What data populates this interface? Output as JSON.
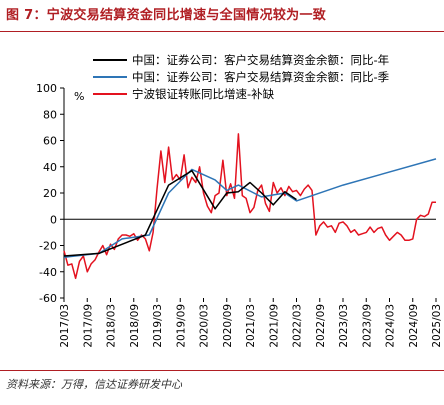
{
  "title": "图 7：宁波交易结算资金同比增速与全国情况较为一致",
  "source": "资料来源：万得，信达证券研发中心",
  "colors": {
    "accent": "#b01e23",
    "black_series": "#000000",
    "blue_series": "#2e75b6",
    "red_series": "#e3121f"
  },
  "chart_data": {
    "type": "line",
    "ylabel": "%",
    "ylim": [
      -60,
      100
    ],
    "yticks": [
      -60,
      -40,
      -20,
      0,
      20,
      40,
      60,
      80,
      100
    ],
    "xlim": [
      "2017/03",
      "2025/03"
    ],
    "xtick_labels": [
      "2017/03",
      "2017/09",
      "2018/03",
      "2018/09",
      "2019/03",
      "2019/09",
      "2020/03",
      "2020/09",
      "2021/03",
      "2021/09",
      "2022/03",
      "2022/09",
      "2023/03",
      "2023/09",
      "2024/03",
      "2024/09",
      "2025/03"
    ],
    "grid": false,
    "legend_position": "top",
    "series": [
      {
        "name": "中国：证券公司：客户交易结算资金余额：同比-年",
        "color": "#000000",
        "points": [
          [
            "2017/03",
            -28
          ],
          [
            "2017/12",
            -26
          ],
          [
            "2018/12",
            -12
          ],
          [
            "2019/06",
            26
          ],
          [
            "2019/12",
            37
          ],
          [
            "2020/06",
            8
          ],
          [
            "2020/09",
            20
          ],
          [
            "2020/12",
            21
          ],
          [
            "2021/03",
            28
          ],
          [
            "2021/06",
            20
          ],
          [
            "2021/09",
            11
          ],
          [
            "2021/12",
            21
          ],
          [
            "2022/03",
            15
          ]
        ]
      },
      {
        "name": "中国：证券公司：客户交易结算资金余额：同比-季",
        "color": "#2e75b6",
        "points": [
          [
            "2017/03",
            -29
          ],
          [
            "2017/12",
            -26
          ],
          [
            "2018/06",
            -15
          ],
          [
            "2019/01",
            -12
          ],
          [
            "2019/06",
            20
          ],
          [
            "2019/12",
            38
          ],
          [
            "2020/06",
            30
          ],
          [
            "2020/09",
            22
          ],
          [
            "2020/12",
            26
          ],
          [
            "2021/06",
            17
          ],
          [
            "2021/12",
            20
          ],
          [
            "2022/03",
            14
          ],
          [
            "2023/03",
            26
          ],
          [
            "2025/03",
            46
          ]
        ]
      },
      {
        "name": "宁波银证转账同比增速-补缺",
        "color": "#e3121f",
        "points": [
          [
            "2017/03",
            -24
          ],
          [
            "2017/04",
            -35
          ],
          [
            "2017/05",
            -34
          ],
          [
            "2017/06",
            -45
          ],
          [
            "2017/07",
            -32
          ],
          [
            "2017/08",
            -28
          ],
          [
            "2017/09",
            -40
          ],
          [
            "2017/10",
            -34
          ],
          [
            "2017/11",
            -31
          ],
          [
            "2017/12",
            -25
          ],
          [
            "2018/01",
            -20
          ],
          [
            "2018/02",
            -27
          ],
          [
            "2018/03",
            -19
          ],
          [
            "2018/04",
            -23
          ],
          [
            "2018/05",
            -15
          ],
          [
            "2018/06",
            -12
          ],
          [
            "2018/07",
            -12
          ],
          [
            "2018/08",
            -13
          ],
          [
            "2018/09",
            -11
          ],
          [
            "2018/10",
            -16
          ],
          [
            "2018/11",
            -12
          ],
          [
            "2018/12",
            -15
          ],
          [
            "2019/01",
            -24
          ],
          [
            "2019/02",
            -10
          ],
          [
            "2019/03",
            23
          ],
          [
            "2019/04",
            52
          ],
          [
            "2019/05",
            28
          ],
          [
            "2019/06",
            55
          ],
          [
            "2019/07",
            30
          ],
          [
            "2019/08",
            34
          ],
          [
            "2019/09",
            30
          ],
          [
            "2019/10",
            49
          ],
          [
            "2019/11",
            24
          ],
          [
            "2019/12",
            32
          ],
          [
            "2020/01",
            28
          ],
          [
            "2020/02",
            40
          ],
          [
            "2020/03",
            20
          ],
          [
            "2020/04",
            10
          ],
          [
            "2020/05",
            5
          ],
          [
            "2020/06",
            18
          ],
          [
            "2020/07",
            20
          ],
          [
            "2020/08",
            45
          ],
          [
            "2020/09",
            18
          ],
          [
            "2020/10",
            27
          ],
          [
            "2020/11",
            16
          ],
          [
            "2020/12",
            65
          ],
          [
            "2021/01",
            18
          ],
          [
            "2021/02",
            16
          ],
          [
            "2021/03",
            5
          ],
          [
            "2021/04",
            9
          ],
          [
            "2021/05",
            22
          ],
          [
            "2021/06",
            26
          ],
          [
            "2021/07",
            12
          ],
          [
            "2021/08",
            6
          ],
          [
            "2021/09",
            28
          ],
          [
            "2021/10",
            20
          ],
          [
            "2021/11",
            24
          ],
          [
            "2021/12",
            18
          ],
          [
            "2022/01",
            25
          ],
          [
            "2022/02",
            21
          ],
          [
            "2022/03",
            22
          ],
          [
            "2022/04",
            18
          ],
          [
            "2022/05",
            23
          ],
          [
            "2022/06",
            26
          ],
          [
            "2022/07",
            22
          ],
          [
            "2022/08",
            -12
          ],
          [
            "2022/09",
            -5
          ],
          [
            "2022/10",
            -2
          ],
          [
            "2022/11",
            -6
          ],
          [
            "2022/12",
            -5
          ],
          [
            "2023/01",
            -10
          ],
          [
            "2023/02",
            -3
          ],
          [
            "2023/03",
            -2
          ],
          [
            "2023/04",
            -5
          ],
          [
            "2023/05",
            -10
          ],
          [
            "2023/06",
            -8
          ],
          [
            "2023/07",
            -12
          ],
          [
            "2023/08",
            -11
          ],
          [
            "2023/09",
            -10
          ],
          [
            "2023/10",
            -6
          ],
          [
            "2023/11",
            -10
          ],
          [
            "2023/12",
            -7
          ],
          [
            "2024/01",
            -6
          ],
          [
            "2024/02",
            -12
          ],
          [
            "2024/03",
            -16
          ],
          [
            "2024/04",
            -13
          ],
          [
            "2024/05",
            -10
          ],
          [
            "2024/06",
            -12
          ],
          [
            "2024/07",
            -16
          ],
          [
            "2024/08",
            -16
          ],
          [
            "2024/09",
            -15
          ],
          [
            "2024/10",
            0
          ],
          [
            "2024/11",
            3
          ],
          [
            "2024/12",
            2
          ],
          [
            "2025/01",
            4
          ],
          [
            "2025/02",
            13
          ],
          [
            "2025/03",
            13
          ]
        ]
      }
    ]
  }
}
